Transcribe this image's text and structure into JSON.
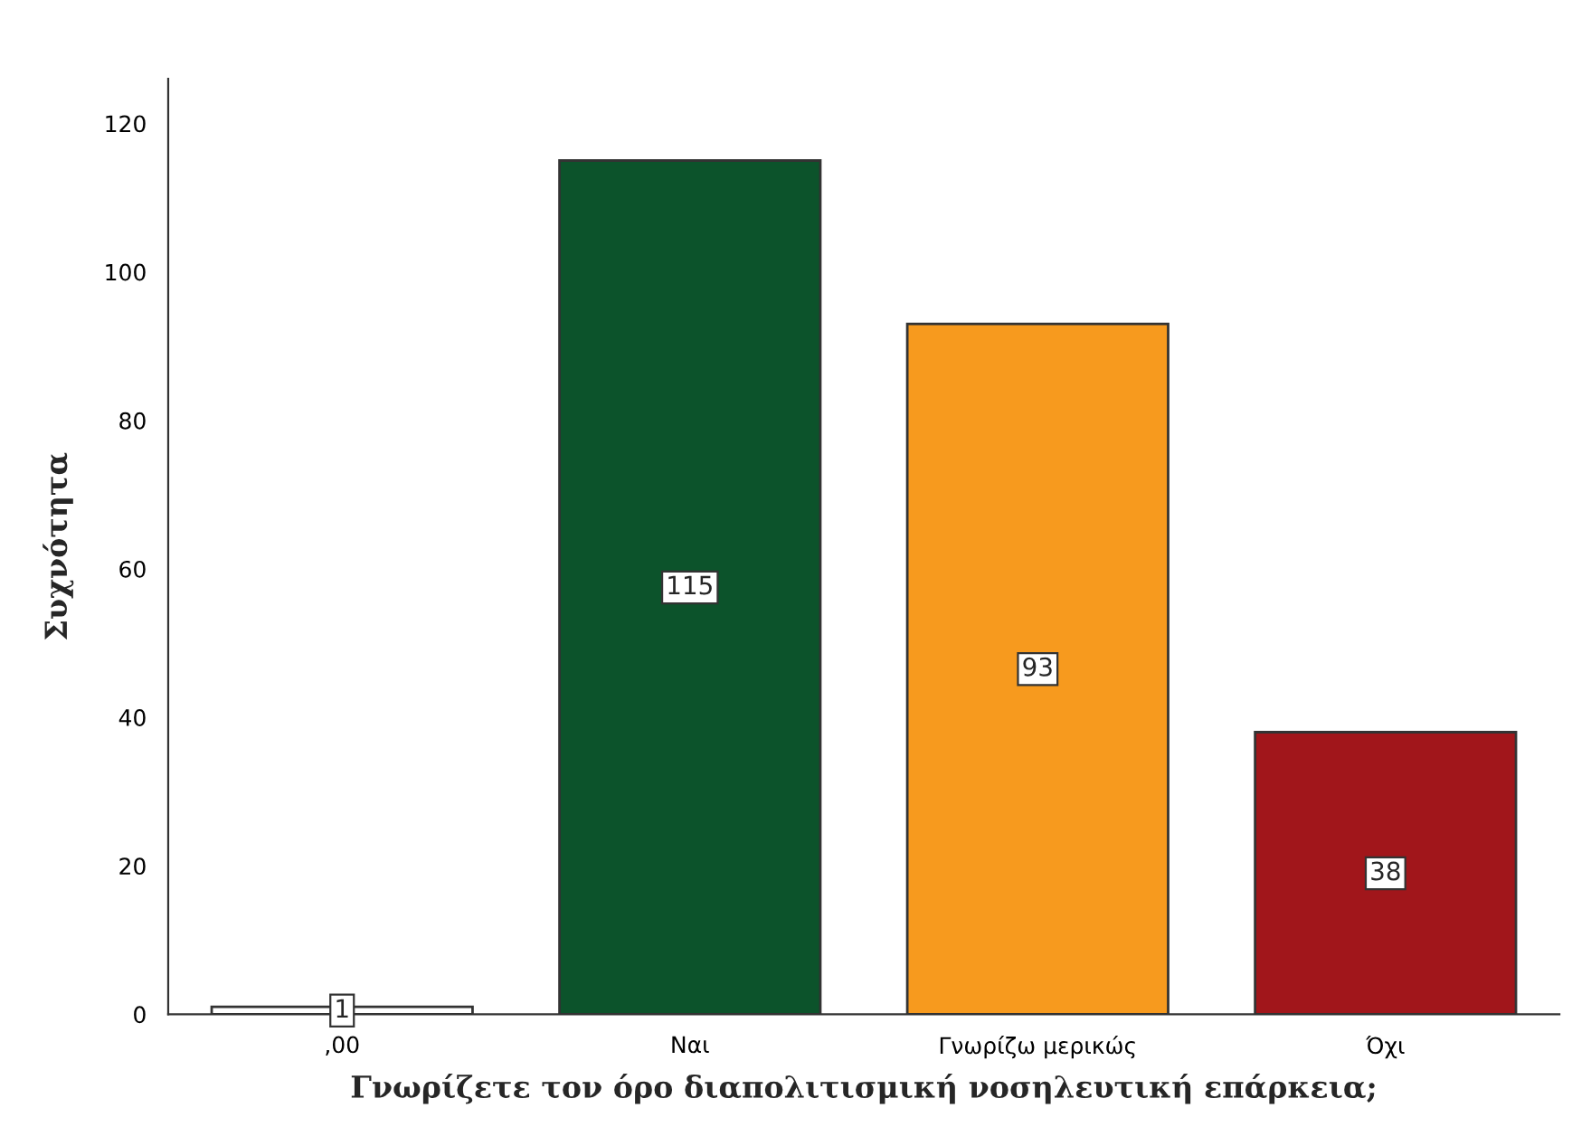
{
  "chart_data": {
    "type": "bar",
    "xlabel": "Γνωρίζετε τον όρο διαπολιτισμική νοσηλευτική επάρκεια;",
    "ylabel": "Συχνότητα",
    "categories": [
      ",00",
      "Ναι",
      "Γνωρίζω μερικώς",
      "Όχι"
    ],
    "values": [
      1,
      115,
      93,
      38
    ],
    "colors": [
      "#ffffff",
      "#0c532b",
      "#f79a1e",
      "#a1161b"
    ],
    "ylim": [
      0,
      126
    ],
    "yticks": [
      0,
      20,
      40,
      60,
      80,
      100,
      120
    ],
    "data_labels": true,
    "grid": false,
    "legend": false
  }
}
